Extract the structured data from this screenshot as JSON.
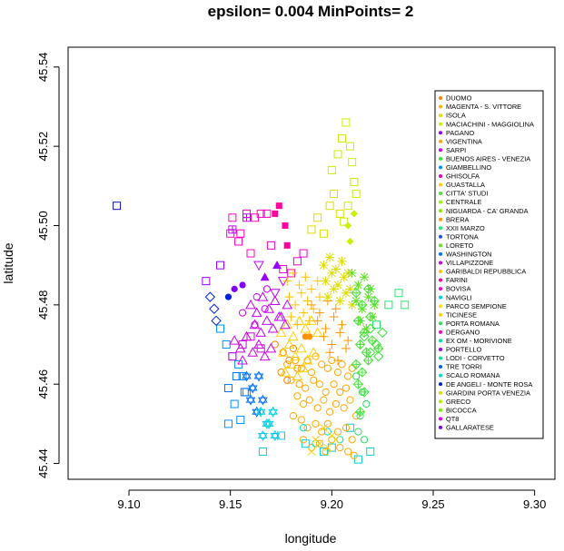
{
  "chart_data": {
    "type": "scatter",
    "title": "epsilon= 0.004  MinPoints= 2",
    "xlabel": "longitude",
    "ylabel": "latitude",
    "xlim": [
      9.07,
      9.31
    ],
    "ylim": [
      45.436,
      45.545
    ],
    "x_ticks": [
      "9.10",
      "9.15",
      "9.20",
      "9.25",
      "9.30"
    ],
    "x_tick_values": [
      9.1,
      9.15,
      9.2,
      9.25,
      9.3
    ],
    "y_ticks": [
      "45.44",
      "45.46",
      "45.48",
      "45.50",
      "45.52",
      "45.54"
    ],
    "y_tick_values": [
      45.44,
      45.46,
      45.48,
      45.5,
      45.52,
      45.54
    ],
    "grid": false,
    "legend_position": "right, inside plot",
    "legend": [
      {
        "label": "DUOMO",
        "color": "#FF8000"
      },
      {
        "label": "MAGENTA - S. VITTORE",
        "color": "#FFB000"
      },
      {
        "label": "ISOLA",
        "color": "#DDDD00"
      },
      {
        "label": "MACIACHINI - MAGGIOLINA",
        "color": "#C8F000"
      },
      {
        "label": "PAGANO",
        "color": "#9A00FF"
      },
      {
        "label": "VIGENTINA",
        "color": "#FFA800"
      },
      {
        "label": "SARPI",
        "color": "#C800FF"
      },
      {
        "label": "BUENOS AIRES - VENEZIA",
        "color": "#30E830"
      },
      {
        "label": "GIAMBELLINO",
        "color": "#0090FF"
      },
      {
        "label": "GHISOLFA",
        "color": "#E800C8"
      },
      {
        "label": "GUASTALLA",
        "color": "#FFD000"
      },
      {
        "label": "CITTA' STUDI",
        "color": "#50E040"
      },
      {
        "label": "CENTRALE",
        "color": "#A0F000"
      },
      {
        "label": "NIGUARDA - CA' GRANDA",
        "color": "#8CE800"
      },
      {
        "label": "BRERA",
        "color": "#FF9400"
      },
      {
        "label": "XXII MARZO",
        "color": "#20E870"
      },
      {
        "label": "TORTONA",
        "color": "#2050FF"
      },
      {
        "label": "LORETO",
        "color": "#60E020"
      },
      {
        "label": "WASHINGTON",
        "color": "#0070FF"
      },
      {
        "label": "VILLAPIZZONE",
        "color": "#D000E8"
      },
      {
        "label": "GARIBALDI REPUBBLICA",
        "color": "#FFC000"
      },
      {
        "label": "FARINI",
        "color": "#FF00A0"
      },
      {
        "label": "BOVISA",
        "color": "#F000D8"
      },
      {
        "label": "NAVIGLI",
        "color": "#00D0E0"
      },
      {
        "label": "PARCO SEMPIONE",
        "color": "#FFE000"
      },
      {
        "label": "TICINESE",
        "color": "#FFC800"
      },
      {
        "label": "PORTA ROMANA",
        "color": "#28E060"
      },
      {
        "label": "DERGANO",
        "color": "#FF00C0"
      },
      {
        "label": "EX OM - MORIVIONE",
        "color": "#00E0A0"
      },
      {
        "label": "PORTELLO",
        "color": "#A000F8"
      },
      {
        "label": "LODI - CORVETTO",
        "color": "#00E890"
      },
      {
        "label": "TRE TORRI",
        "color": "#0060F0"
      },
      {
        "label": "SCALO ROMANA",
        "color": "#00E0C8"
      },
      {
        "label": "DE ANGELI - MONTE ROSA",
        "color": "#0020E0"
      },
      {
        "label": "GIARDINI PORTA VENEZIA",
        "color": "#D8E000"
      },
      {
        "label": "GRECO",
        "color": "#B0F000"
      },
      {
        "label": "BICOCCA",
        "color": "#78F000"
      },
      {
        "label": "QT8",
        "color": "#E000F0"
      },
      {
        "label": "GALLARATESE",
        "color": "#8000FF"
      }
    ],
    "series": [
      {
        "shape": "square-open",
        "color": "#1010D0",
        "x": [
          9.094
        ],
        "y": [
          45.505
        ]
      },
      {
        "shape": "square-open",
        "color": "#9A00FF",
        "x": [
          9.138,
          9.145
        ],
        "y": [
          45.486,
          45.49
        ]
      },
      {
        "shape": "square-filled",
        "color": "#FF00A0",
        "x": [
          9.172,
          9.174,
          9.177,
          9.178
        ],
        "y": [
          45.503,
          45.505,
          45.5,
          45.495
        ]
      },
      {
        "shape": "square-open",
        "color": "#FF00C0",
        "x": [
          9.151,
          9.155,
          9.158,
          9.162,
          9.165,
          9.168,
          9.15,
          9.154,
          9.16
        ],
        "y": [
          45.502,
          45.498,
          45.503,
          45.502,
          45.503,
          45.503,
          45.498,
          45.496,
          45.493
        ]
      },
      {
        "shape": "square-open",
        "color": "#E800C8",
        "x": [
          9.17,
          9.176,
          9.18,
          9.183,
          9.186
        ],
        "y": [
          45.495,
          45.489,
          45.488,
          45.491,
          45.493
        ]
      },
      {
        "shape": "square-open",
        "color": "#DDDD00",
        "x": [
          9.19,
          9.193,
          9.196,
          9.199,
          9.201,
          9.204
        ],
        "y": [
          45.499,
          45.502,
          45.498,
          45.505,
          45.508,
          45.503
        ]
      },
      {
        "shape": "square-open",
        "color": "#C8F000",
        "x": [
          9.2,
          9.203,
          9.205,
          9.207,
          9.209,
          9.21,
          9.211,
          9.212,
          9.208,
          9.206
        ],
        "y": [
          45.514,
          45.518,
          45.522,
          45.526,
          45.52,
          45.516,
          45.511,
          45.508,
          45.505,
          45.501
        ]
      },
      {
        "shape": "square-open",
        "color": "#0090FF",
        "x": [
          9.145,
          9.148,
          9.151,
          9.154,
          9.156,
          9.158,
          9.152,
          9.155,
          9.149
        ],
        "y": [
          45.474,
          45.47,
          45.467,
          45.465,
          45.462,
          45.458,
          45.455,
          45.451,
          45.45
        ]
      },
      {
        "shape": "square-open",
        "color": "#00D0E0",
        "x": [
          9.166,
          9.175,
          9.187,
          9.196,
          9.2,
          9.209,
          9.213,
          9.219
        ],
        "y": [
          45.443,
          45.447,
          45.445,
          45.443,
          45.444,
          45.449,
          45.441,
          45.443
        ]
      },
      {
        "shape": "square-open",
        "color": "#20E870",
        "x": [
          9.222,
          9.228,
          9.233,
          9.236
        ],
        "y": [
          45.475,
          45.48,
          45.483,
          45.48
        ]
      },
      {
        "shape": "circle-open",
        "color": "#FFA800",
        "x": [
          9.178,
          9.182,
          9.185,
          9.188,
          9.19,
          9.192,
          9.195,
          9.198,
          9.2,
          9.203,
          9.205,
          9.208,
          9.21,
          9.18,
          9.184,
          9.187,
          9.191,
          9.194,
          9.197,
          9.201,
          9.204,
          9.207,
          9.183,
          9.186,
          9.189,
          9.193,
          9.196,
          9.199,
          9.202,
          9.206,
          9.209,
          9.212,
          9.181,
          9.185,
          9.188,
          9.192,
          9.195,
          9.198,
          9.203,
          9.207,
          9.21,
          9.186,
          9.19,
          9.194,
          9.197,
          9.2,
          9.204,
          9.208,
          9.211
        ],
        "y": [
          45.465,
          45.466,
          45.464,
          45.466,
          45.463,
          45.467,
          45.465,
          45.464,
          45.466,
          45.463,
          45.465,
          45.462,
          45.464,
          45.461,
          45.46,
          45.459,
          45.461,
          45.46,
          45.458,
          45.46,
          45.458,
          45.459,
          45.457,
          45.455,
          45.456,
          45.454,
          45.456,
          45.453,
          45.455,
          45.454,
          45.456,
          45.452,
          45.452,
          45.451,
          45.449,
          45.45,
          45.448,
          45.45,
          45.448,
          45.449,
          45.446,
          45.446,
          45.444,
          45.445,
          45.443,
          45.446,
          45.444,
          45.443,
          45.442
        ]
      },
      {
        "shape": "circle-open",
        "color": "#FF8000",
        "x": [
          9.172,
          9.176,
          9.179,
          9.181,
          9.175,
          9.178,
          9.183
        ],
        "y": [
          45.47,
          45.468,
          45.466,
          45.469,
          45.463,
          45.461,
          45.464
        ]
      },
      {
        "shape": "circle-open",
        "color": "#28E060",
        "x": [
          9.212,
          9.215,
          9.214,
          9.217,
          9.213,
          9.216
        ],
        "y": [
          45.462,
          45.458,
          45.452,
          45.455,
          45.448,
          45.446
        ]
      },
      {
        "shape": "circle-open",
        "color": "#00E0C8",
        "x": [
          9.186,
          9.192,
          9.198,
          9.204
        ],
        "y": [
          45.449,
          45.445,
          45.448,
          45.446
        ]
      },
      {
        "shape": "circle-filled",
        "color": "#FF9400",
        "x": [
          9.187,
          9.189
        ],
        "y": [
          45.472,
          45.472
        ]
      },
      {
        "shape": "triangle-up-open",
        "color": "#FFD000",
        "x": [
          9.175,
          9.178,
          9.181,
          9.184,
          9.187,
          9.19,
          9.193,
          9.176,
          9.179,
          9.182,
          9.185,
          9.188,
          9.191,
          9.177,
          9.18,
          9.183,
          9.186
        ],
        "y": [
          45.473,
          45.475,
          45.472,
          45.476,
          45.474,
          45.476,
          45.473,
          45.468,
          45.47,
          45.467,
          45.469,
          45.466,
          45.468,
          45.463,
          45.465,
          45.462,
          45.464
        ]
      },
      {
        "shape": "triangle-up-open",
        "color": "#C800FF",
        "x": [
          9.16,
          9.163,
          9.166,
          9.169,
          9.172,
          9.175,
          9.178,
          9.162,
          9.165,
          9.168,
          9.171,
          9.174,
          9.177
        ],
        "y": [
          45.48,
          45.478,
          45.482,
          45.479,
          45.481,
          45.477,
          45.48,
          45.475,
          45.473,
          45.476,
          45.474,
          45.477,
          45.475
        ]
      },
      {
        "shape": "triangle-up-open",
        "color": "#D000E8",
        "x": [
          9.152,
          9.155,
          9.158,
          9.161,
          9.164,
          9.167,
          9.17,
          9.156
        ],
        "y": [
          45.471,
          45.469,
          45.472,
          45.468,
          45.47,
          45.467,
          45.469,
          45.466
        ]
      },
      {
        "shape": "triangle-down-open",
        "color": "#C800FF",
        "x": [
          9.164,
          9.172,
          9.176
        ],
        "y": [
          45.49,
          45.483,
          45.486
        ]
      },
      {
        "shape": "triangle-up-filled",
        "color": "#9A00FF",
        "x": [
          9.167,
          9.173
        ],
        "y": [
          45.487,
          45.49
        ]
      },
      {
        "shape": "diamond-open",
        "color": "#0020E0",
        "x": [
          9.14,
          9.142,
          9.143
        ],
        "y": [
          45.482,
          45.479,
          45.476
        ]
      },
      {
        "shape": "circle-filled",
        "color": "#0020E0",
        "x": [
          9.149
        ],
        "y": [
          45.482
        ]
      },
      {
        "shape": "circle-filled",
        "color": "#8000FF",
        "x": [
          9.152,
          9.156
        ],
        "y": [
          45.484,
          45.485
        ]
      },
      {
        "shape": "diamond-open",
        "color": "#30E830",
        "x": [
          9.216,
          9.219,
          9.222,
          9.225,
          9.219,
          9.223
        ],
        "y": [
          45.472,
          45.474,
          45.47,
          45.473,
          45.468,
          45.467
        ]
      },
      {
        "shape": "diamond-filled",
        "color": "#C8F000",
        "x": [
          9.208,
          9.211,
          9.209
        ],
        "y": [
          45.5,
          45.503,
          45.496
        ]
      },
      {
        "shape": "plus",
        "color": "#FFC000",
        "x": [
          9.178,
          9.181,
          9.184,
          9.187,
          9.19,
          9.193,
          9.179,
          9.182,
          9.185,
          9.188,
          9.191,
          9.194,
          9.18,
          9.183,
          9.186,
          9.189
        ],
        "y": [
          45.486,
          45.488,
          45.485,
          45.487,
          45.484,
          45.486,
          45.482,
          45.48,
          45.483,
          45.481,
          45.479,
          45.482,
          45.477,
          45.475,
          45.478,
          45.476
        ]
      },
      {
        "shape": "plus",
        "color": "#FF9400",
        "x": [
          9.19,
          9.194,
          9.198,
          9.202,
          9.193,
          9.197,
          9.201,
          9.205,
          9.196,
          9.2,
          9.204,
          9.208,
          9.199,
          9.203,
          9.207
        ],
        "y": [
          45.48,
          45.478,
          45.481,
          45.479,
          45.476,
          45.474,
          45.477,
          45.475,
          45.472,
          45.47,
          45.473,
          45.471,
          45.468,
          45.466,
          45.469
        ]
      },
      {
        "shape": "x",
        "color": "#FFD000",
        "x": [
          9.192,
          9.196,
          9.2,
          9.19,
          9.194,
          9.198,
          9.202
        ],
        "y": [
          45.446,
          45.449,
          45.447,
          45.443,
          45.445,
          45.444,
          45.446
        ]
      },
      {
        "shape": "star",
        "color": "#DDDD00",
        "x": [
          9.196,
          9.199,
          9.202,
          9.205,
          9.208,
          9.197,
          9.2,
          9.203,
          9.206,
          9.209,
          9.198,
          9.201,
          9.204,
          9.207,
          9.21
        ],
        "y": [
          45.49,
          45.492,
          45.489,
          45.491,
          45.488,
          45.486,
          45.488,
          45.485,
          45.487,
          45.484,
          45.482,
          45.484,
          45.481,
          45.483,
          45.48
        ]
      },
      {
        "shape": "star",
        "color": "#60E020",
        "x": [
          9.21,
          9.213,
          9.216,
          9.219,
          9.212,
          9.215,
          9.218,
          9.221,
          9.214,
          9.217,
          9.22
        ],
        "y": [
          45.488,
          45.485,
          45.487,
          45.484,
          45.481,
          45.479,
          45.482,
          45.48,
          45.476,
          45.474,
          45.477
        ]
      },
      {
        "shape": "diamond-plus",
        "color": "#50E040",
        "x": [
          9.212,
          9.215,
          9.218,
          9.221,
          9.213,
          9.216,
          9.219,
          9.214,
          9.217,
          9.22,
          9.223,
          9.212,
          9.215,
          9.218,
          9.213,
          9.216,
          9.214
        ],
        "y": [
          45.483,
          45.48,
          45.484,
          45.481,
          45.476,
          45.473,
          45.477,
          45.47,
          45.468,
          45.471,
          45.469,
          45.465,
          45.463,
          45.466,
          45.46,
          45.458,
          45.453
        ]
      },
      {
        "shape": "star-of-david",
        "color": "#0070FF",
        "x": [
          9.158,
          9.161,
          9.164,
          9.16,
          9.163,
          9.166
        ],
        "y": [
          45.462,
          45.459,
          45.462,
          45.456,
          45.453,
          45.456
        ]
      },
      {
        "shape": "star-of-david",
        "color": "#00D0E0",
        "x": [
          9.165,
          9.168,
          9.171,
          9.166,
          9.169,
          9.172
        ],
        "y": [
          45.453,
          45.45,
          45.453,
          45.447,
          45.45,
          45.447
        ]
      },
      {
        "shape": "square-cross",
        "color": "#C800FF",
        "x": [
          9.151,
          9.158
        ],
        "y": [
          45.499,
          45.502
        ]
      },
      {
        "shape": "circle-open",
        "color": "#D000E8",
        "x": [
          9.156,
          9.162,
          9.167
        ],
        "y": [
          45.478,
          45.475,
          45.479
        ]
      },
      {
        "shape": "circle-open",
        "color": "#C800FF",
        "x": [
          9.163,
          9.168
        ],
        "y": [
          45.482,
          45.484
        ]
      },
      {
        "shape": "square-open",
        "color": "#D000E8",
        "x": [
          9.151,
          9.156,
          9.16,
          9.165
        ],
        "y": [
          45.467,
          45.47,
          45.472,
          45.469
        ]
      },
      {
        "shape": "square-open",
        "color": "#0070FF",
        "x": [
          9.149,
          9.153,
          9.157
        ],
        "y": [
          45.459,
          45.462,
          45.458
        ]
      }
    ]
  }
}
